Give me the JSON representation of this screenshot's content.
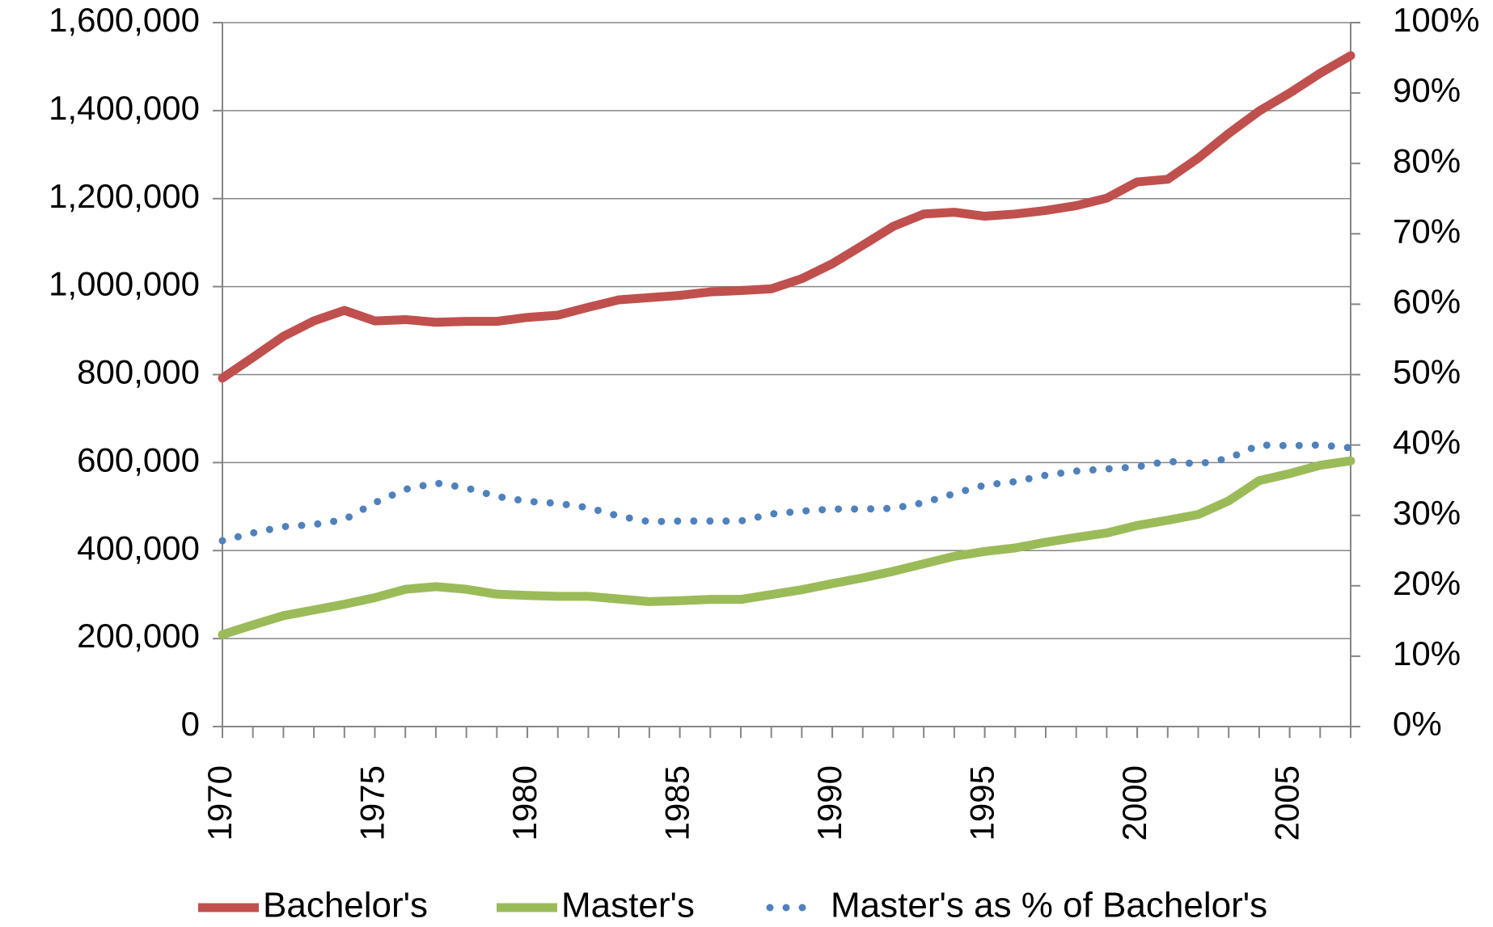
{
  "chart_data": {
    "type": "line",
    "x": [
      1970,
      1971,
      1972,
      1973,
      1974,
      1975,
      1976,
      1977,
      1978,
      1979,
      1980,
      1981,
      1982,
      1983,
      1984,
      1985,
      1986,
      1987,
      1988,
      1989,
      1990,
      1991,
      1992,
      1993,
      1994,
      1995,
      1996,
      1997,
      1998,
      1999,
      2000,
      2001,
      2002,
      2003,
      2004,
      2005,
      2006,
      2007
    ],
    "xlim": [
      1970,
      2007
    ],
    "xticks": [
      1970,
      1975,
      1980,
      1985,
      1990,
      1995,
      2000,
      2005
    ],
    "ylim": [
      0,
      1600000
    ],
    "yticks": [
      0,
      {
        "value": 200000,
        "label": "200,000"
      },
      {
        "value": 400000,
        "label": "400,000"
      },
      {
        "value": 600000,
        "label": "600,000"
      },
      {
        "value": 800000,
        "label": "800,000"
      },
      {
        "value": 1000000,
        "label": "1,000,000"
      },
      {
        "value": 1200000,
        "label": "1,200,000"
      },
      {
        "value": 1400000,
        "label": "1,400,000"
      },
      {
        "value": 1600000,
        "label": "1,600,000"
      }
    ],
    "y2lim": [
      0,
      100
    ],
    "y2ticks": [
      {
        "value": 0,
        "label": "0%"
      },
      {
        "value": 10,
        "label": "10%"
      },
      {
        "value": 20,
        "label": "20%"
      },
      {
        "value": 30,
        "label": "30%"
      },
      {
        "value": 40,
        "label": "40%"
      },
      {
        "value": 50,
        "label": "50%"
      },
      {
        "value": 60,
        "label": "60%"
      },
      {
        "value": 70,
        "label": "70%"
      },
      {
        "value": 80,
        "label": "80%"
      },
      {
        "value": 90,
        "label": "90%"
      },
      {
        "value": 100,
        "label": "100%"
      }
    ],
    "grid": true,
    "legend": "bottom",
    "series": [
      {
        "name": "Bachelor's",
        "color": "#c0504d",
        "style": "solid",
        "values": [
          792000,
          839000,
          887000,
          922000,
          946000,
          922000,
          925000,
          919000,
          921000,
          921000,
          930000,
          935000,
          953000,
          970000,
          975000,
          980000,
          988000,
          991000,
          995000,
          1018000,
          1052000,
          1094000,
          1137000,
          1165000,
          1169000,
          1160000,
          1165000,
          1173000,
          1184000,
          1201000,
          1238000,
          1244000,
          1292000,
          1348000,
          1399000,
          1440000,
          1485000,
          1525000
        ]
      },
      {
        "name": "Master's",
        "color": "#9bbb59",
        "style": "solid",
        "values": [
          209000,
          231000,
          252000,
          265000,
          278000,
          293000,
          312000,
          318000,
          312000,
          301000,
          298000,
          296000,
          296000,
          290000,
          284000,
          286000,
          289000,
          289000,
          300000,
          311000,
          325000,
          338000,
          353000,
          370000,
          387000,
          398000,
          406000,
          419000,
          430000,
          440000,
          457000,
          469000,
          482000,
          513000,
          559000,
          575000,
          594000,
          604000
        ]
      },
      {
        "name": "Master's as % of Bachelor's",
        "color": "#4f81bd",
        "style": "dotted",
        "axis": "y2",
        "values": [
          26.4,
          27.5,
          28.4,
          28.7,
          29.4,
          31.8,
          33.7,
          34.6,
          33.9,
          32.7,
          32.0,
          31.7,
          31.1,
          29.9,
          29.1,
          29.2,
          29.2,
          29.2,
          30.2,
          30.6,
          30.9,
          30.9,
          31.0,
          31.8,
          33.1,
          34.3,
          34.8,
          35.7,
          36.3,
          36.6,
          36.9,
          37.7,
          37.3,
          38.1,
          40.0,
          39.9,
          40.0,
          39.6
        ]
      }
    ]
  }
}
